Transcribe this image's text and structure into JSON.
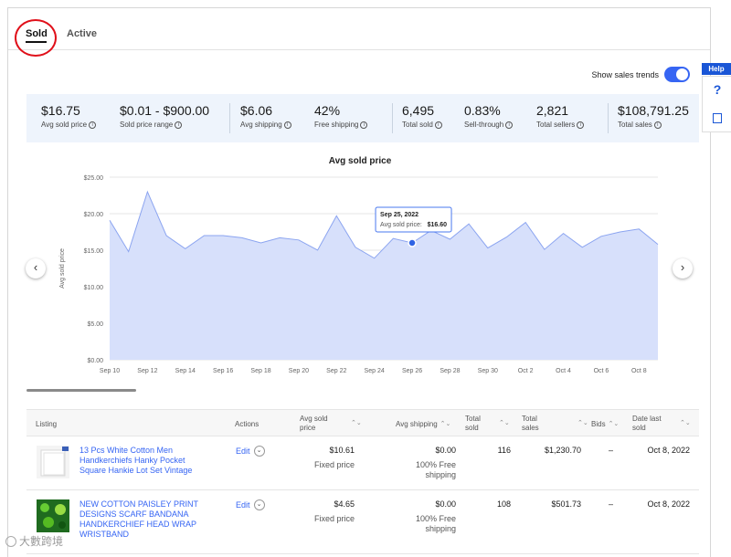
{
  "tabs": [
    {
      "label": "Sold"
    },
    {
      "label": "Active"
    }
  ],
  "toggle": {
    "label": "Show sales trends",
    "on": true
  },
  "help": {
    "label": "Help",
    "question": "?"
  },
  "metrics": [
    {
      "value": "$16.75",
      "label": "Avg sold price"
    },
    {
      "value": "$0.01 - $900.00",
      "label": "Sold price range"
    },
    {
      "value": "$6.06",
      "label": "Avg shipping"
    },
    {
      "value": "42%",
      "label": "Free shipping"
    },
    {
      "value": "6,495",
      "label": "Total sold"
    },
    {
      "value": "0.83%",
      "label": "Sell-through"
    },
    {
      "value": "2,821",
      "label": "Total sellers"
    },
    {
      "value": "$108,791.25",
      "label": "Total sales"
    }
  ],
  "info_glyph": "i",
  "chart_data": {
    "type": "area",
    "title": "Avg sold price",
    "ylabel": "Avg sold price",
    "ylim": [
      0,
      25
    ],
    "yticks": [
      "$0.00",
      "$5.00",
      "$10.00",
      "$15.00",
      "$20.00",
      "$25.00"
    ],
    "xticks": [
      "Sep 10",
      "Sep 12",
      "Sep 14",
      "Sep 16",
      "Sep 18",
      "Sep 20",
      "Sep 22",
      "Sep 24",
      "Sep 26",
      "Sep 28",
      "Sep 30",
      "Oct 2",
      "Oct 4",
      "Oct 6",
      "Oct 8"
    ],
    "values": [
      19.1,
      14.8,
      23.0,
      17.0,
      15.2,
      17.0,
      17.0,
      16.7,
      16.0,
      16.7,
      16.4,
      15.0,
      19.7,
      15.4,
      13.9,
      16.6,
      16.0,
      17.7,
      16.5,
      18.6,
      15.3,
      16.8,
      18.8,
      15.1,
      17.3,
      15.4,
      16.9,
      17.5,
      17.9,
      15.8
    ],
    "tooltip": {
      "date": "Sep 25, 2022",
      "label": "Avg sold price:",
      "value": "$16.60",
      "index": 16
    }
  },
  "nav": {
    "prev": "‹",
    "next": "›"
  },
  "table": {
    "headers": {
      "listing": "Listing",
      "actions": "Actions",
      "avg_sold_price": [
        "Avg sold",
        "price"
      ],
      "avg_shipping": "Avg shipping",
      "total_sold": [
        "Total",
        "sold"
      ],
      "total_sales": [
        "Total",
        "sales"
      ],
      "bids": "Bids",
      "date_last_sold": [
        "Date last",
        "sold"
      ]
    },
    "sort_glyph": "⌃⌄",
    "rows": [
      {
        "title": "13 Pcs White Cotton Men Handkerchiefs Hanky Pocket Square Hankie Lot Set Vintage",
        "edit": "Edit",
        "avg_sold_price": "$10.61",
        "price_type": "Fixed price",
        "avg_shipping": "$0.00",
        "shipping_note": "100% Free shipping",
        "total_sold": "116",
        "total_sales": "$1,230.70",
        "bids": "–",
        "date_last_sold": "Oct 8, 2022",
        "thumb_color": "#f4f4f4"
      },
      {
        "title": "NEW COTTON PAISLEY PRINT DESIGNS SCARF BANDANA HANDKERCHIEF HEAD WRAP WRISTBAND",
        "edit": "Edit",
        "avg_sold_price": "$4.65",
        "price_type": "Fixed price",
        "avg_shipping": "$0.00",
        "shipping_note": "100% Free shipping",
        "total_sold": "108",
        "total_sales": "$501.73",
        "bids": "–",
        "date_last_sold": "Oct 8, 2022",
        "thumb_color": "#1f6b1f"
      }
    ]
  },
  "watermark": "大數跨境",
  "colors": {
    "accent": "#3665f3",
    "area_fill": "#d7e0fb",
    "line": "#8ba4f0",
    "metrics_bg": "#eef4fc",
    "highlight_circle": "#e0101a"
  }
}
